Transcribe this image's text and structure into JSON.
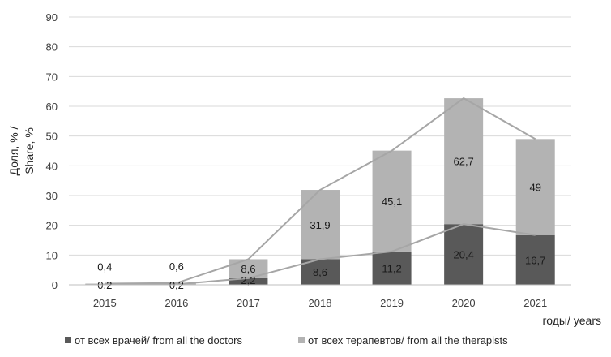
{
  "chart_data": {
    "type": "bar",
    "stacked": true,
    "title": "",
    "xlabel": "годы/ years",
    "ylabel": [
      "Доля, % /",
      "Share, %"
    ],
    "ylim": [
      0,
      90
    ],
    "yticks": [
      "0",
      "10",
      "20",
      "30",
      "40",
      "50",
      "60",
      "70",
      "80",
      "90"
    ],
    "grid": true,
    "legend_position": "bottom",
    "categories": [
      "2015",
      "2016",
      "2017",
      "2018",
      "2019",
      "2020",
      "2021"
    ],
    "series": [
      {
        "name": "от всех врачей/ from all the doctors",
        "color": "#595959",
        "values": [
          0.2,
          0.2,
          2.2,
          8.6,
          11.2,
          20.4,
          16.7
        ],
        "labels": [
          "0,2",
          "0,2",
          "2,2",
          "8,6",
          "11,2",
          "20,4",
          "16,7"
        ]
      },
      {
        "name": "от всех терапевтов/ from all the therapists",
        "color": "#b3b3b3",
        "values": [
          0.4,
          0.6,
          8.6,
          31.9,
          45.1,
          62.7,
          49
        ],
        "labels": [
          "0,4",
          "0,6",
          "8,6",
          "31,9",
          "45,1",
          "62,7",
          "49"
        ]
      }
    ]
  }
}
